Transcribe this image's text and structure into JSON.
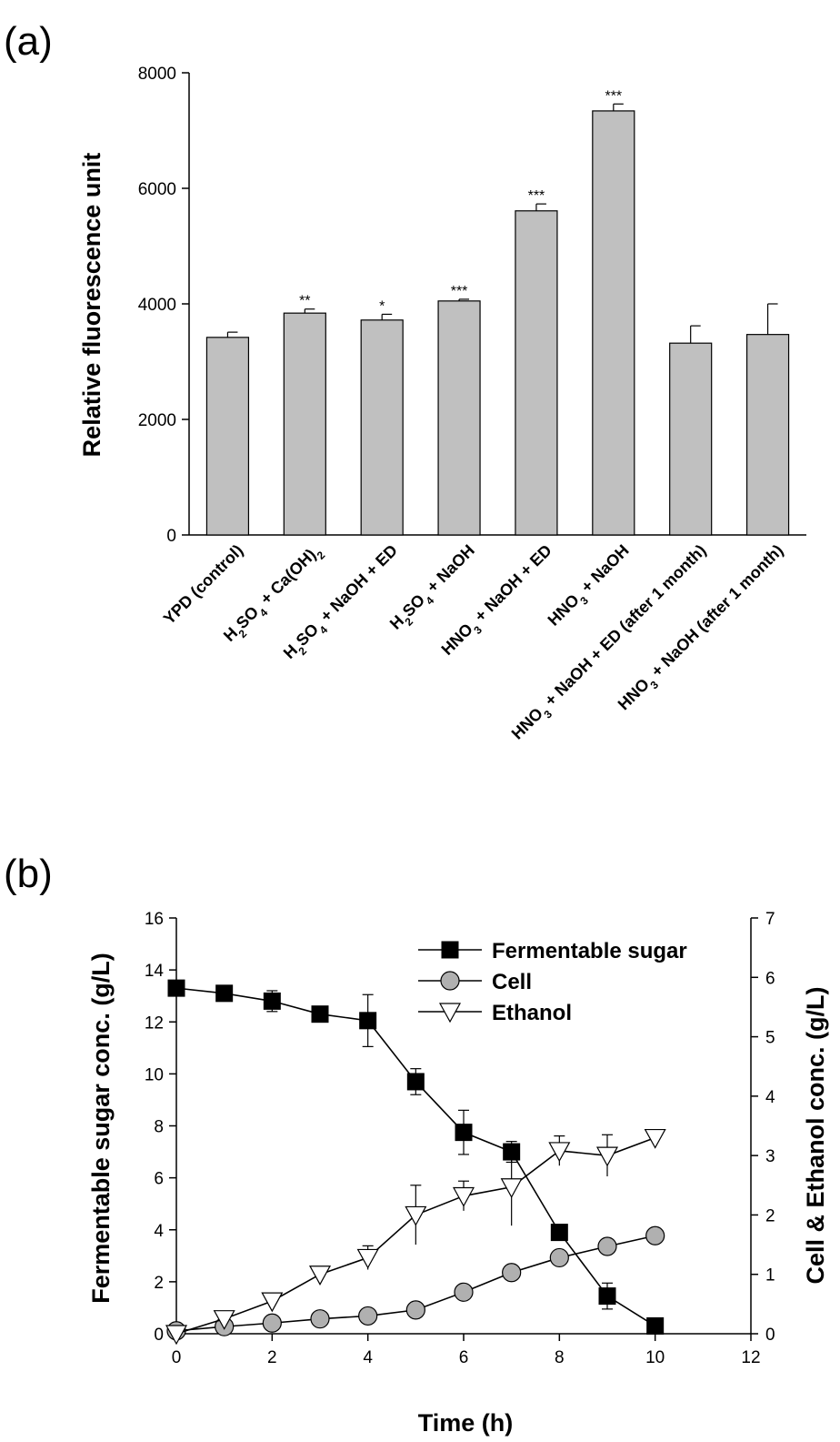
{
  "chart_data": [
    {
      "panel": "(a)",
      "type": "bar",
      "ylabel": "Relative fluorescence unit",
      "ylim": [
        0,
        8000
      ],
      "yticks": [
        0,
        2000,
        4000,
        6000,
        8000
      ],
      "categories": [
        {
          "parts": [
            [
              "YPD (control)",
              ""
            ]
          ]
        },
        {
          "parts": [
            [
              "H",
              ""
            ],
            [
              "2",
              "sub"
            ],
            [
              "SO",
              ""
            ],
            [
              "4",
              "sub"
            ],
            [
              " + Ca(OH)",
              ""
            ],
            [
              "2",
              "sub"
            ]
          ]
        },
        {
          "parts": [
            [
              "H",
              ""
            ],
            [
              "2",
              "sub"
            ],
            [
              "SO",
              ""
            ],
            [
              "4",
              "sub"
            ],
            [
              " + NaOH + ED",
              ""
            ]
          ]
        },
        {
          "parts": [
            [
              "H",
              ""
            ],
            [
              "2",
              "sub"
            ],
            [
              "SO",
              ""
            ],
            [
              "4",
              "sub"
            ],
            [
              " + NaOH",
              ""
            ]
          ]
        },
        {
          "parts": [
            [
              "HNO",
              ""
            ],
            [
              "3",
              "sub"
            ],
            [
              " + NaOH + ED",
              ""
            ]
          ]
        },
        {
          "parts": [
            [
              "HNO",
              ""
            ],
            [
              "3",
              "sub"
            ],
            [
              " + NaOH",
              ""
            ]
          ]
        },
        {
          "parts": [
            [
              "HNO",
              ""
            ],
            [
              "3",
              "sub"
            ],
            [
              " + NaOH + ED (after 1 month)",
              ""
            ]
          ]
        },
        {
          "parts": [
            [
              "HNO",
              ""
            ],
            [
              "3",
              "sub"
            ],
            [
              " + NaOH (after 1 month)",
              ""
            ]
          ]
        }
      ],
      "values": [
        3420,
        3840,
        3720,
        4050,
        5610,
        7340,
        3320,
        3470
      ],
      "errors": [
        90,
        70,
        100,
        30,
        120,
        120,
        300,
        530
      ],
      "significance": [
        "",
        "**",
        "*",
        "***",
        "***",
        "***",
        "",
        ""
      ],
      "bar_color": "#c0c0c0",
      "grid": false
    },
    {
      "panel": "(b)",
      "type": "line",
      "xlabel": "Time (h)",
      "ylabel": "Fermentable sugar conc. (g/L)",
      "y2label": "Cell & Ethanol conc. (g/L)",
      "xlim": [
        0,
        12
      ],
      "ylim": [
        0,
        16
      ],
      "y2lim": [
        0,
        7
      ],
      "xticks": [
        0,
        2,
        4,
        6,
        8,
        10,
        12
      ],
      "yticks": [
        0,
        2,
        4,
        6,
        8,
        10,
        12,
        14,
        16
      ],
      "y2ticks": [
        0,
        1,
        2,
        3,
        4,
        5,
        6,
        7
      ],
      "legend_position": "top-right",
      "grid": false,
      "series": [
        {
          "name": "Fermentable sugar",
          "axis": "left",
          "marker": "square",
          "x": [
            0,
            1,
            2,
            3,
            4,
            5,
            6,
            7,
            8,
            9,
            10
          ],
          "y": [
            13.3,
            13.1,
            12.8,
            12.3,
            12.05,
            9.7,
            7.75,
            7.0,
            3.9,
            1.45,
            0.3
          ],
          "err": [
            0.0,
            0.0,
            0.4,
            0.1,
            1.0,
            0.5,
            0.85,
            0.4,
            0.0,
            0.5,
            0.0
          ]
        },
        {
          "name": "Cell",
          "axis": "right",
          "marker": "circle",
          "x": [
            0,
            1,
            2,
            3,
            4,
            5,
            6,
            7,
            8,
            9,
            10
          ],
          "y": [
            0.05,
            0.12,
            0.18,
            0.25,
            0.3,
            0.4,
            0.7,
            1.03,
            1.28,
            1.47,
            1.65
          ],
          "err": [
            0,
            0,
            0,
            0,
            0,
            0,
            0,
            0,
            0,
            0,
            0
          ]
        },
        {
          "name": "Ethanol",
          "axis": "right",
          "marker": "triangle-down",
          "x": [
            0,
            1,
            2,
            3,
            4,
            5,
            6,
            7,
            8,
            9,
            10
          ],
          "y": [
            0.0,
            0.25,
            0.55,
            1.0,
            1.28,
            2.0,
            2.32,
            2.47,
            3.08,
            3.0,
            3.3
          ],
          "err": [
            0.0,
            0.0,
            0.0,
            0.1,
            0.2,
            0.5,
            0.25,
            0.65,
            0.25,
            0.35,
            0.08
          ]
        }
      ]
    }
  ]
}
